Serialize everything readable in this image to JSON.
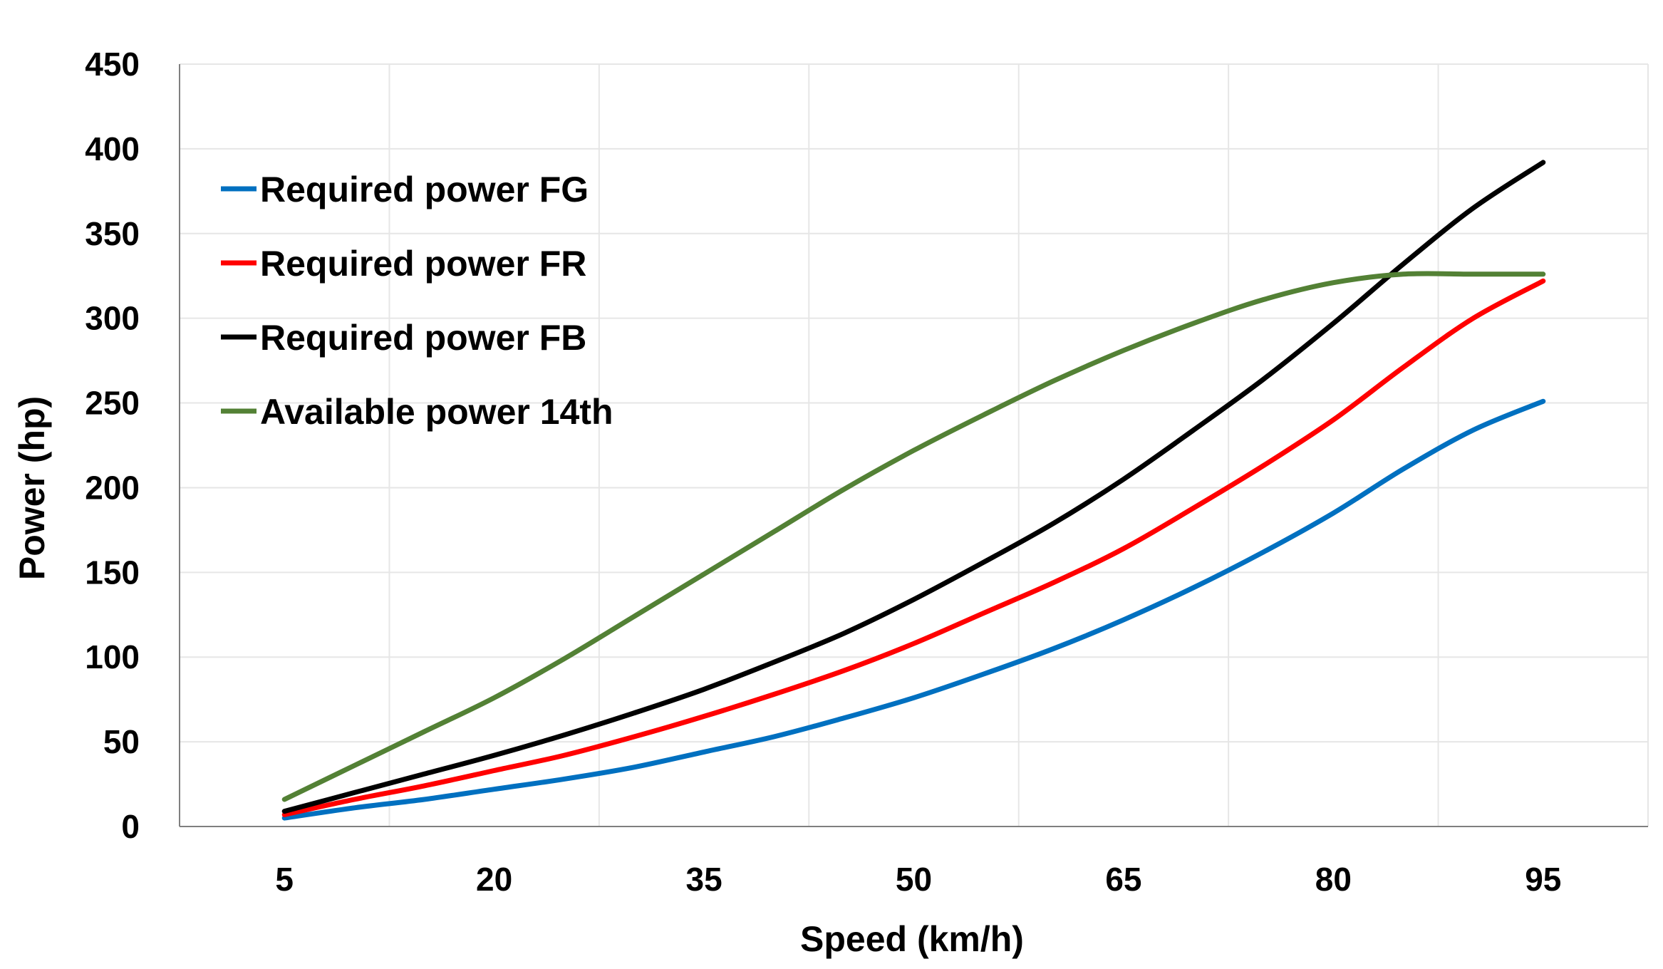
{
  "chart_data": {
    "type": "line",
    "title": "",
    "xlabel": "Speed (km/h)",
    "ylabel": "Power (hp)",
    "x_ticks": [
      5,
      20,
      35,
      50,
      65,
      80,
      95
    ],
    "y_ticks": [
      0,
      50,
      100,
      150,
      200,
      250,
      300,
      350,
      400,
      450
    ],
    "xlim": [
      -2.5,
      102.5
    ],
    "ylim": [
      0,
      450
    ],
    "grid": true,
    "legend_position": "top-left",
    "x": [
      5,
      10,
      15,
      20,
      25,
      30,
      35,
      40,
      45,
      50,
      55,
      60,
      65,
      70,
      75,
      80,
      85,
      90,
      95
    ],
    "series": [
      {
        "name": "Required power FG",
        "color": "#0070C0",
        "values": [
          5,
          11,
          16,
          22,
          28,
          35,
          44,
          53,
          64,
          76,
          90,
          105,
          122,
          141,
          162,
          185,
          211,
          234,
          251
        ]
      },
      {
        "name": "Required power FR",
        "color": "#FF0000",
        "values": [
          7,
          16,
          24,
          33,
          42,
          53,
          65,
          78,
          92,
          108,
          126,
          144,
          164,
          188,
          213,
          240,
          271,
          300,
          322
        ]
      },
      {
        "name": "Required power FB",
        "color": "#000000",
        "values": [
          9,
          20,
          31,
          42,
          54,
          67,
          81,
          97,
          114,
          134,
          156,
          179,
          205,
          234,
          264,
          297,
          332,
          365,
          392
        ]
      },
      {
        "name": "Available power 14th",
        "color": "#538135",
        "values": [
          16,
          36,
          56,
          76,
          99,
          124,
          149,
          174,
          199,
          222,
          243,
          263,
          281,
          297,
          311,
          321,
          326,
          326,
          326
        ]
      }
    ]
  }
}
